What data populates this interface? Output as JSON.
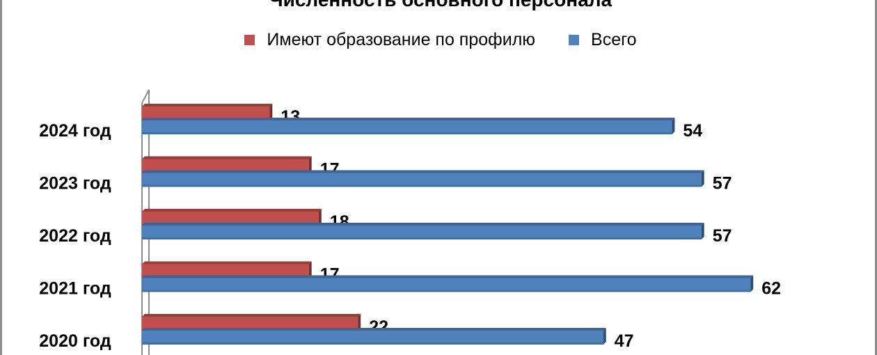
{
  "chart_data": {
    "type": "bar",
    "orientation": "horizontal",
    "title": "Численность основного персонала",
    "categories": [
      "2024 год",
      "2023 год",
      "2022 год",
      "2021 год",
      "2020 год"
    ],
    "series": [
      {
        "name": "Имеют образование по профилю",
        "color": "#C0504D",
        "values": [
          13,
          17,
          18,
          17,
          22
        ]
      },
      {
        "name": "Всего",
        "color": "#4F81BD",
        "values": [
          54,
          57,
          57,
          62,
          47
        ]
      }
    ],
    "xlim": [
      0,
      70
    ],
    "grid": false,
    "legend_position": "top",
    "data_labels": true
  }
}
